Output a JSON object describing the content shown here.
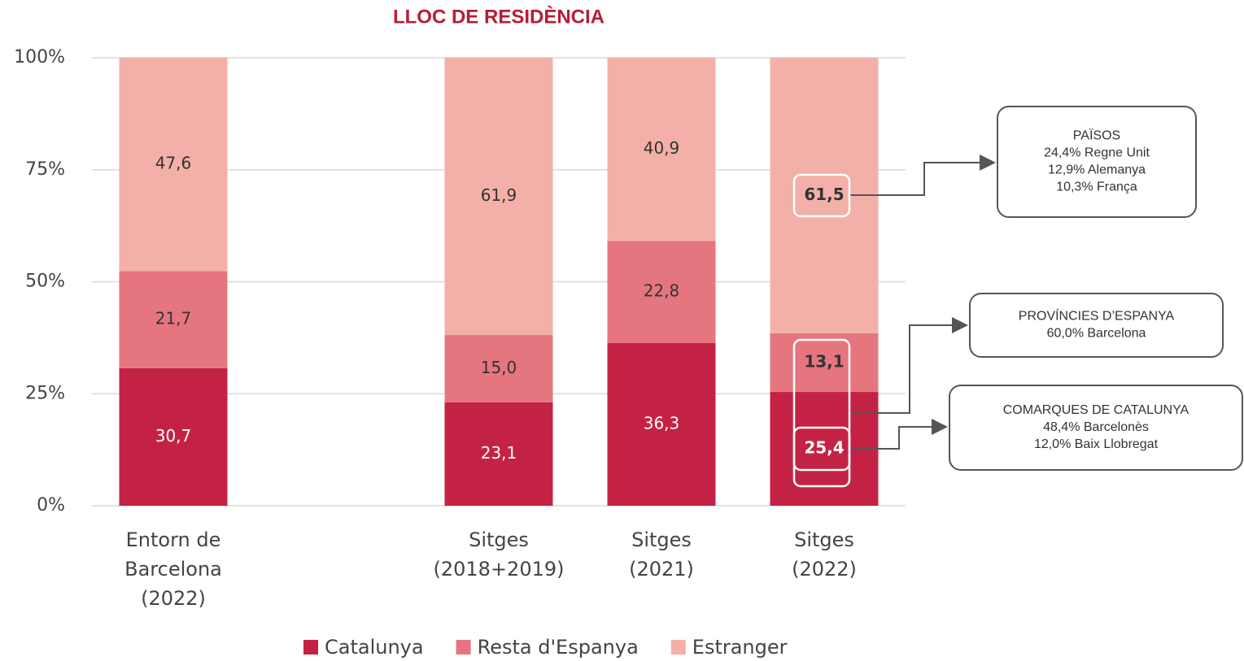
{
  "chart_data": {
    "type": "stacked_bar",
    "title": "LLOC DE RESIDÈNCIA",
    "categories": [
      [
        "Entorn de",
        "Barcelona",
        "(2022)"
      ],
      null,
      [
        "Sitges",
        "(2018+2019)"
      ],
      [
        "Sitges",
        "(2021)"
      ],
      [
        "Sitges",
        "(2022)"
      ]
    ],
    "series": [
      {
        "name": "Catalunya",
        "color": "#c42244",
        "values": [
          30.7,
          null,
          23.1,
          36.3,
          25.4
        ],
        "value_labels": [
          "30,7",
          null,
          "23,1",
          "36,3",
          "25,4"
        ]
      },
      {
        "name": "Resta d'Espanya",
        "color": "#e5767f",
        "values": [
          21.7,
          null,
          15.0,
          22.8,
          13.1
        ],
        "value_labels": [
          "21,7",
          null,
          "15,0",
          "22,8",
          "13,1"
        ]
      },
      {
        "name": "Estranger",
        "color": "#f3b0a8",
        "values": [
          47.6,
          null,
          61.9,
          40.9,
          61.5
        ],
        "value_labels": [
          "47,6",
          null,
          "61,9",
          "40,9",
          "61,5"
        ]
      }
    ],
    "ylim": [
      0,
      100
    ],
    "yticks": [
      {
        "value": 0,
        "label": "0%"
      },
      {
        "value": 25,
        "label": "25%"
      },
      {
        "value": 50,
        "label": "50%"
      },
      {
        "value": 75,
        "label": "75%"
      },
      {
        "value": 100,
        "label": "100%"
      }
    ],
    "grid": true,
    "legend": "bottom",
    "annotations": [
      {
        "lines": [
          "PAÏSOS",
          "24,4% Regne Unit",
          "12,9% Alemanya",
          "10,3% França"
        ]
      },
      {
        "lines": [
          "PROVÍNCIES D’ESPANYA",
          "60,0% Barcelona"
        ]
      },
      {
        "lines": [
          "COMARQUES DE CATALUNYA",
          "48,4% Barcelonès",
          "12,0% Baix Llobregat"
        ]
      }
    ]
  }
}
